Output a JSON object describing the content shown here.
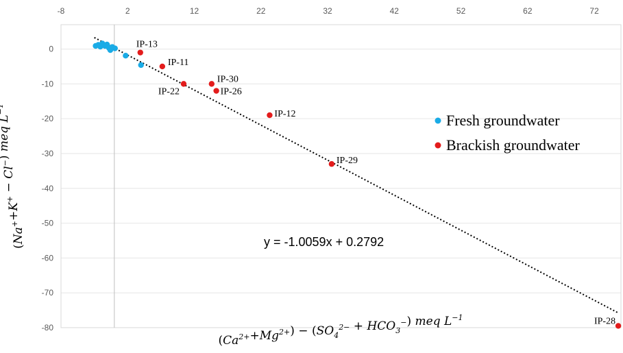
{
  "chart_data": {
    "type": "scatter",
    "x_ticks": [
      "-8",
      "2",
      "12",
      "22",
      "32",
      "42",
      "52",
      "62",
      "72"
    ],
    "y_ticks": [
      "0",
      "-10",
      "-20",
      "-30",
      "-40",
      "-50",
      "-60",
      "-70",
      "-80"
    ],
    "xlim": [
      -8,
      76
    ],
    "ylim": [
      -80,
      7
    ],
    "xlabel_parts": [
      "(",
      "Ca",
      "2+",
      "+",
      "Mg",
      "2+",
      ") − (",
      "SO",
      "4",
      "2−",
      " + ",
      "HCO",
      "3",
      "−",
      ") ",
      "meq L",
      "−1"
    ],
    "ylabel_parts": [
      "(",
      "Na",
      "+",
      "+",
      "K",
      "+",
      " − ",
      "Cl",
      "−",
      ") ",
      "meq L",
      "−1"
    ],
    "trendline": {
      "equation": "y = -1.0059x + 0.2792",
      "slope": -1.0059,
      "intercept": 0.2792,
      "x_range": [
        -3,
        75.5
      ]
    },
    "legend_position": "right",
    "series": [
      {
        "name": "Fresh groundwater",
        "color": "#1AABE6",
        "points": [
          {
            "x": -2.8,
            "y": 0.9
          },
          {
            "x": -2.4,
            "y": 1.2
          },
          {
            "x": -2.1,
            "y": 0.7
          },
          {
            "x": -1.8,
            "y": 1.6
          },
          {
            "x": -1.4,
            "y": 0.9
          },
          {
            "x": -1.1,
            "y": 1.3
          },
          {
            "x": -0.8,
            "y": 0.3
          },
          {
            "x": -0.6,
            "y": -0.3
          },
          {
            "x": -0.3,
            "y": 0.6
          },
          {
            "x": 0.1,
            "y": 0.2
          },
          {
            "x": 1.7,
            "y": -1.9
          },
          {
            "x": 4.0,
            "y": -4.6
          }
        ]
      },
      {
        "name": "Brackish groundwater",
        "color": "#E31C1C",
        "points": [
          {
            "x": 3.9,
            "y": -1.0,
            "label": "IP-13"
          },
          {
            "x": 7.2,
            "y": -5.0,
            "label": "IP-11"
          },
          {
            "x": 10.4,
            "y": -10.0,
            "label": "IP-22"
          },
          {
            "x": 14.6,
            "y": -10.0,
            "label": "IP-30"
          },
          {
            "x": 15.3,
            "y": -12.0,
            "label": "IP-26"
          },
          {
            "x": 23.3,
            "y": -19.0,
            "label": "IP-12"
          },
          {
            "x": 32.6,
            "y": -33.0,
            "label": "IP-29"
          },
          {
            "x": 75.6,
            "y": -79.5,
            "label": "IP-28"
          }
        ]
      }
    ]
  }
}
